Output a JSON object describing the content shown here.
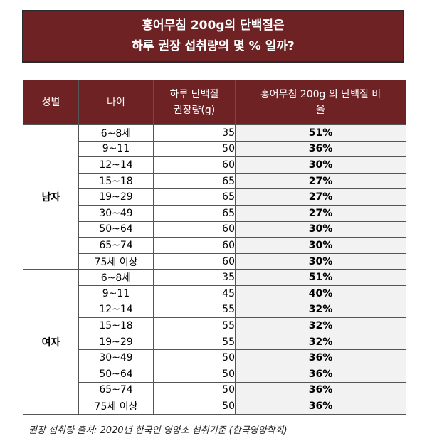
{
  "title": {
    "line1": "홍어무침 200g의 단백질은",
    "line2": "하루 권장 섭취량의 몇 % 일까?"
  },
  "headers": {
    "gender": "성별",
    "age": "나이",
    "recommended_line1": "하루 단백질",
    "recommended_line2": "권장량(g)",
    "ratio_line1": "홍어무침 200g 의 단백질 비",
    "ratio_line2": "율"
  },
  "groups": [
    {
      "gender": "남자",
      "rows": [
        {
          "age": "6~8세",
          "rec": "35",
          "ratio": "51%"
        },
        {
          "age": "9~11",
          "rec": "50",
          "ratio": "36%"
        },
        {
          "age": "12~14",
          "rec": "60",
          "ratio": "30%"
        },
        {
          "age": "15~18",
          "rec": "65",
          "ratio": "27%"
        },
        {
          "age": "19~29",
          "rec": "65",
          "ratio": "27%"
        },
        {
          "age": "30~49",
          "rec": "65",
          "ratio": "27%"
        },
        {
          "age": "50~64",
          "rec": "60",
          "ratio": "30%"
        },
        {
          "age": "65~74",
          "rec": "60",
          "ratio": "30%"
        },
        {
          "age": "75세 이상",
          "rec": "60",
          "ratio": "30%"
        }
      ]
    },
    {
      "gender": "여자",
      "rows": [
        {
          "age": "6~8세",
          "rec": "35",
          "ratio": "51%"
        },
        {
          "age": "9~11",
          "rec": "45",
          "ratio": "40%"
        },
        {
          "age": "12~14",
          "rec": "55",
          "ratio": "32%"
        },
        {
          "age": "15~18",
          "rec": "55",
          "ratio": "32%"
        },
        {
          "age": "19~29",
          "rec": "55",
          "ratio": "32%"
        },
        {
          "age": "30~49",
          "rec": "50",
          "ratio": "36%"
        },
        {
          "age": "50~64",
          "rec": "50",
          "ratio": "36%"
        },
        {
          "age": "65~74",
          "rec": "50",
          "ratio": "36%"
        },
        {
          "age": "75세 이상",
          "rec": "50",
          "ratio": "36%"
        }
      ]
    }
  ],
  "source": "권장 섭취량 출처: 2020년 한국인 영양소 섭취기준 (한국영양학회)"
}
